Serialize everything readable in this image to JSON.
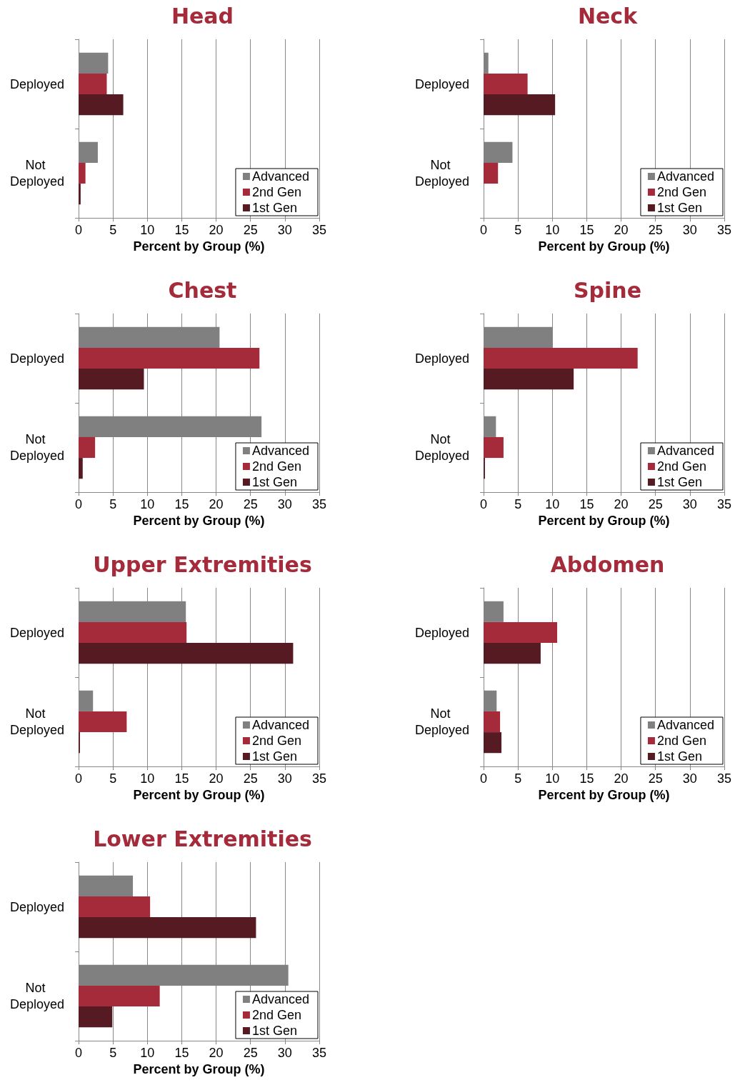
{
  "chart_data": [
    {
      "type": "bar",
      "orientation": "horizontal",
      "title": "Head",
      "xlabel": "Percent by Group (%)",
      "categories": [
        "Deployed",
        "Not Deployed"
      ],
      "xlim": [
        0,
        35
      ],
      "xticks": [
        0,
        5,
        10,
        15,
        20,
        25,
        30,
        35
      ],
      "grid": "x",
      "legend": "bottom right",
      "series": [
        {
          "name": "Advanced",
          "color": "#808080",
          "values": [
            4.3,
            2.8
          ]
        },
        {
          "name": "2nd Gen",
          "color": "#a52a3a",
          "values": [
            4.1,
            1.0
          ]
        },
        {
          "name": "1st Gen",
          "color": "#561a22",
          "values": [
            6.5,
            0.3
          ]
        }
      ]
    },
    {
      "type": "bar",
      "orientation": "horizontal",
      "title": "Neck",
      "xlabel": "Percent by Group (%)",
      "categories": [
        "Deployed",
        "Not Deployed"
      ],
      "xlim": [
        0,
        35
      ],
      "xticks": [
        0,
        5,
        10,
        15,
        20,
        25,
        30,
        35
      ],
      "grid": "x",
      "legend": "bottom right",
      "series": [
        {
          "name": "Advanced",
          "color": "#808080",
          "values": [
            0.7,
            4.2
          ]
        },
        {
          "name": "2nd Gen",
          "color": "#a52a3a",
          "values": [
            6.4,
            2.1
          ]
        },
        {
          "name": "1st Gen",
          "color": "#561a22",
          "values": [
            10.4,
            null
          ]
        }
      ]
    },
    {
      "type": "bar",
      "orientation": "horizontal",
      "title": "Chest",
      "xlabel": "Percent by Group (%)",
      "categories": [
        "Deployed",
        "Not Deployed"
      ],
      "xlim": [
        0,
        35
      ],
      "xticks": [
        0,
        5,
        10,
        15,
        20,
        25,
        30,
        35
      ],
      "grid": "x",
      "legend": "bottom right",
      "series": [
        {
          "name": "Advanced",
          "color": "#808080",
          "values": [
            20.5,
            26.6
          ]
        },
        {
          "name": "2nd Gen",
          "color": "#a52a3a",
          "values": [
            26.3,
            2.4
          ]
        },
        {
          "name": "1st Gen",
          "color": "#561a22",
          "values": [
            9.5,
            0.6
          ]
        }
      ]
    },
    {
      "type": "bar",
      "orientation": "horizontal",
      "title": "Spine",
      "xlabel": "Percent by Group (%)",
      "categories": [
        "Deployed",
        "Not Deployed"
      ],
      "xlim": [
        0,
        35
      ],
      "xticks": [
        0,
        5,
        10,
        15,
        20,
        25,
        30,
        35
      ],
      "grid": "x",
      "legend": "bottom right",
      "series": [
        {
          "name": "Advanced",
          "color": "#808080",
          "values": [
            10.0,
            1.8
          ]
        },
        {
          "name": "2nd Gen",
          "color": "#a52a3a",
          "values": [
            22.4,
            2.9
          ]
        },
        {
          "name": "1st Gen",
          "color": "#561a22",
          "values": [
            13.1,
            0.2
          ]
        }
      ]
    },
    {
      "type": "bar",
      "orientation": "horizontal",
      "title": "Upper Extremities",
      "xlabel": "Percent by Group (%)",
      "categories": [
        "Deployed",
        "Not Deployed"
      ],
      "xlim": [
        0,
        35
      ],
      "xticks": [
        0,
        5,
        10,
        15,
        20,
        25,
        30,
        35
      ],
      "grid": "x",
      "legend": "bottom right",
      "series": [
        {
          "name": "Advanced",
          "color": "#808080",
          "values": [
            15.6,
            2.1
          ]
        },
        {
          "name": "2nd Gen",
          "color": "#a52a3a",
          "values": [
            15.7,
            7.0
          ]
        },
        {
          "name": "1st Gen",
          "color": "#561a22",
          "values": [
            31.2,
            0.2
          ]
        }
      ]
    },
    {
      "type": "bar",
      "orientation": "horizontal",
      "title": "Abdomen",
      "xlabel": "Percent by Group (%)",
      "categories": [
        "Deployed",
        "Not Deployed"
      ],
      "xlim": [
        0,
        35
      ],
      "xticks": [
        0,
        5,
        10,
        15,
        20,
        25,
        30,
        35
      ],
      "grid": "x",
      "legend": "bottom right",
      "series": [
        {
          "name": "Advanced",
          "color": "#808080",
          "values": [
            2.9,
            1.9
          ]
        },
        {
          "name": "2nd Gen",
          "color": "#a52a3a",
          "values": [
            10.7,
            2.4
          ]
        },
        {
          "name": "1st Gen",
          "color": "#561a22",
          "values": [
            8.3,
            2.6
          ]
        }
      ]
    },
    {
      "type": "bar",
      "orientation": "horizontal",
      "title": "Lower Extremities",
      "xlabel": "Percent by Group (%)",
      "categories": [
        "Deployed",
        "Not Deployed"
      ],
      "xlim": [
        0,
        35
      ],
      "xticks": [
        0,
        5,
        10,
        15,
        20,
        25,
        30,
        35
      ],
      "grid": "x",
      "legend": "bottom right",
      "series": [
        {
          "name": "Advanced",
          "color": "#808080",
          "values": [
            7.9,
            30.5
          ]
        },
        {
          "name": "2nd Gen",
          "color": "#a52a3a",
          "values": [
            10.4,
            11.8
          ]
        },
        {
          "name": "1st Gen",
          "color": "#561a22",
          "values": [
            25.8,
            4.9
          ]
        }
      ]
    }
  ]
}
